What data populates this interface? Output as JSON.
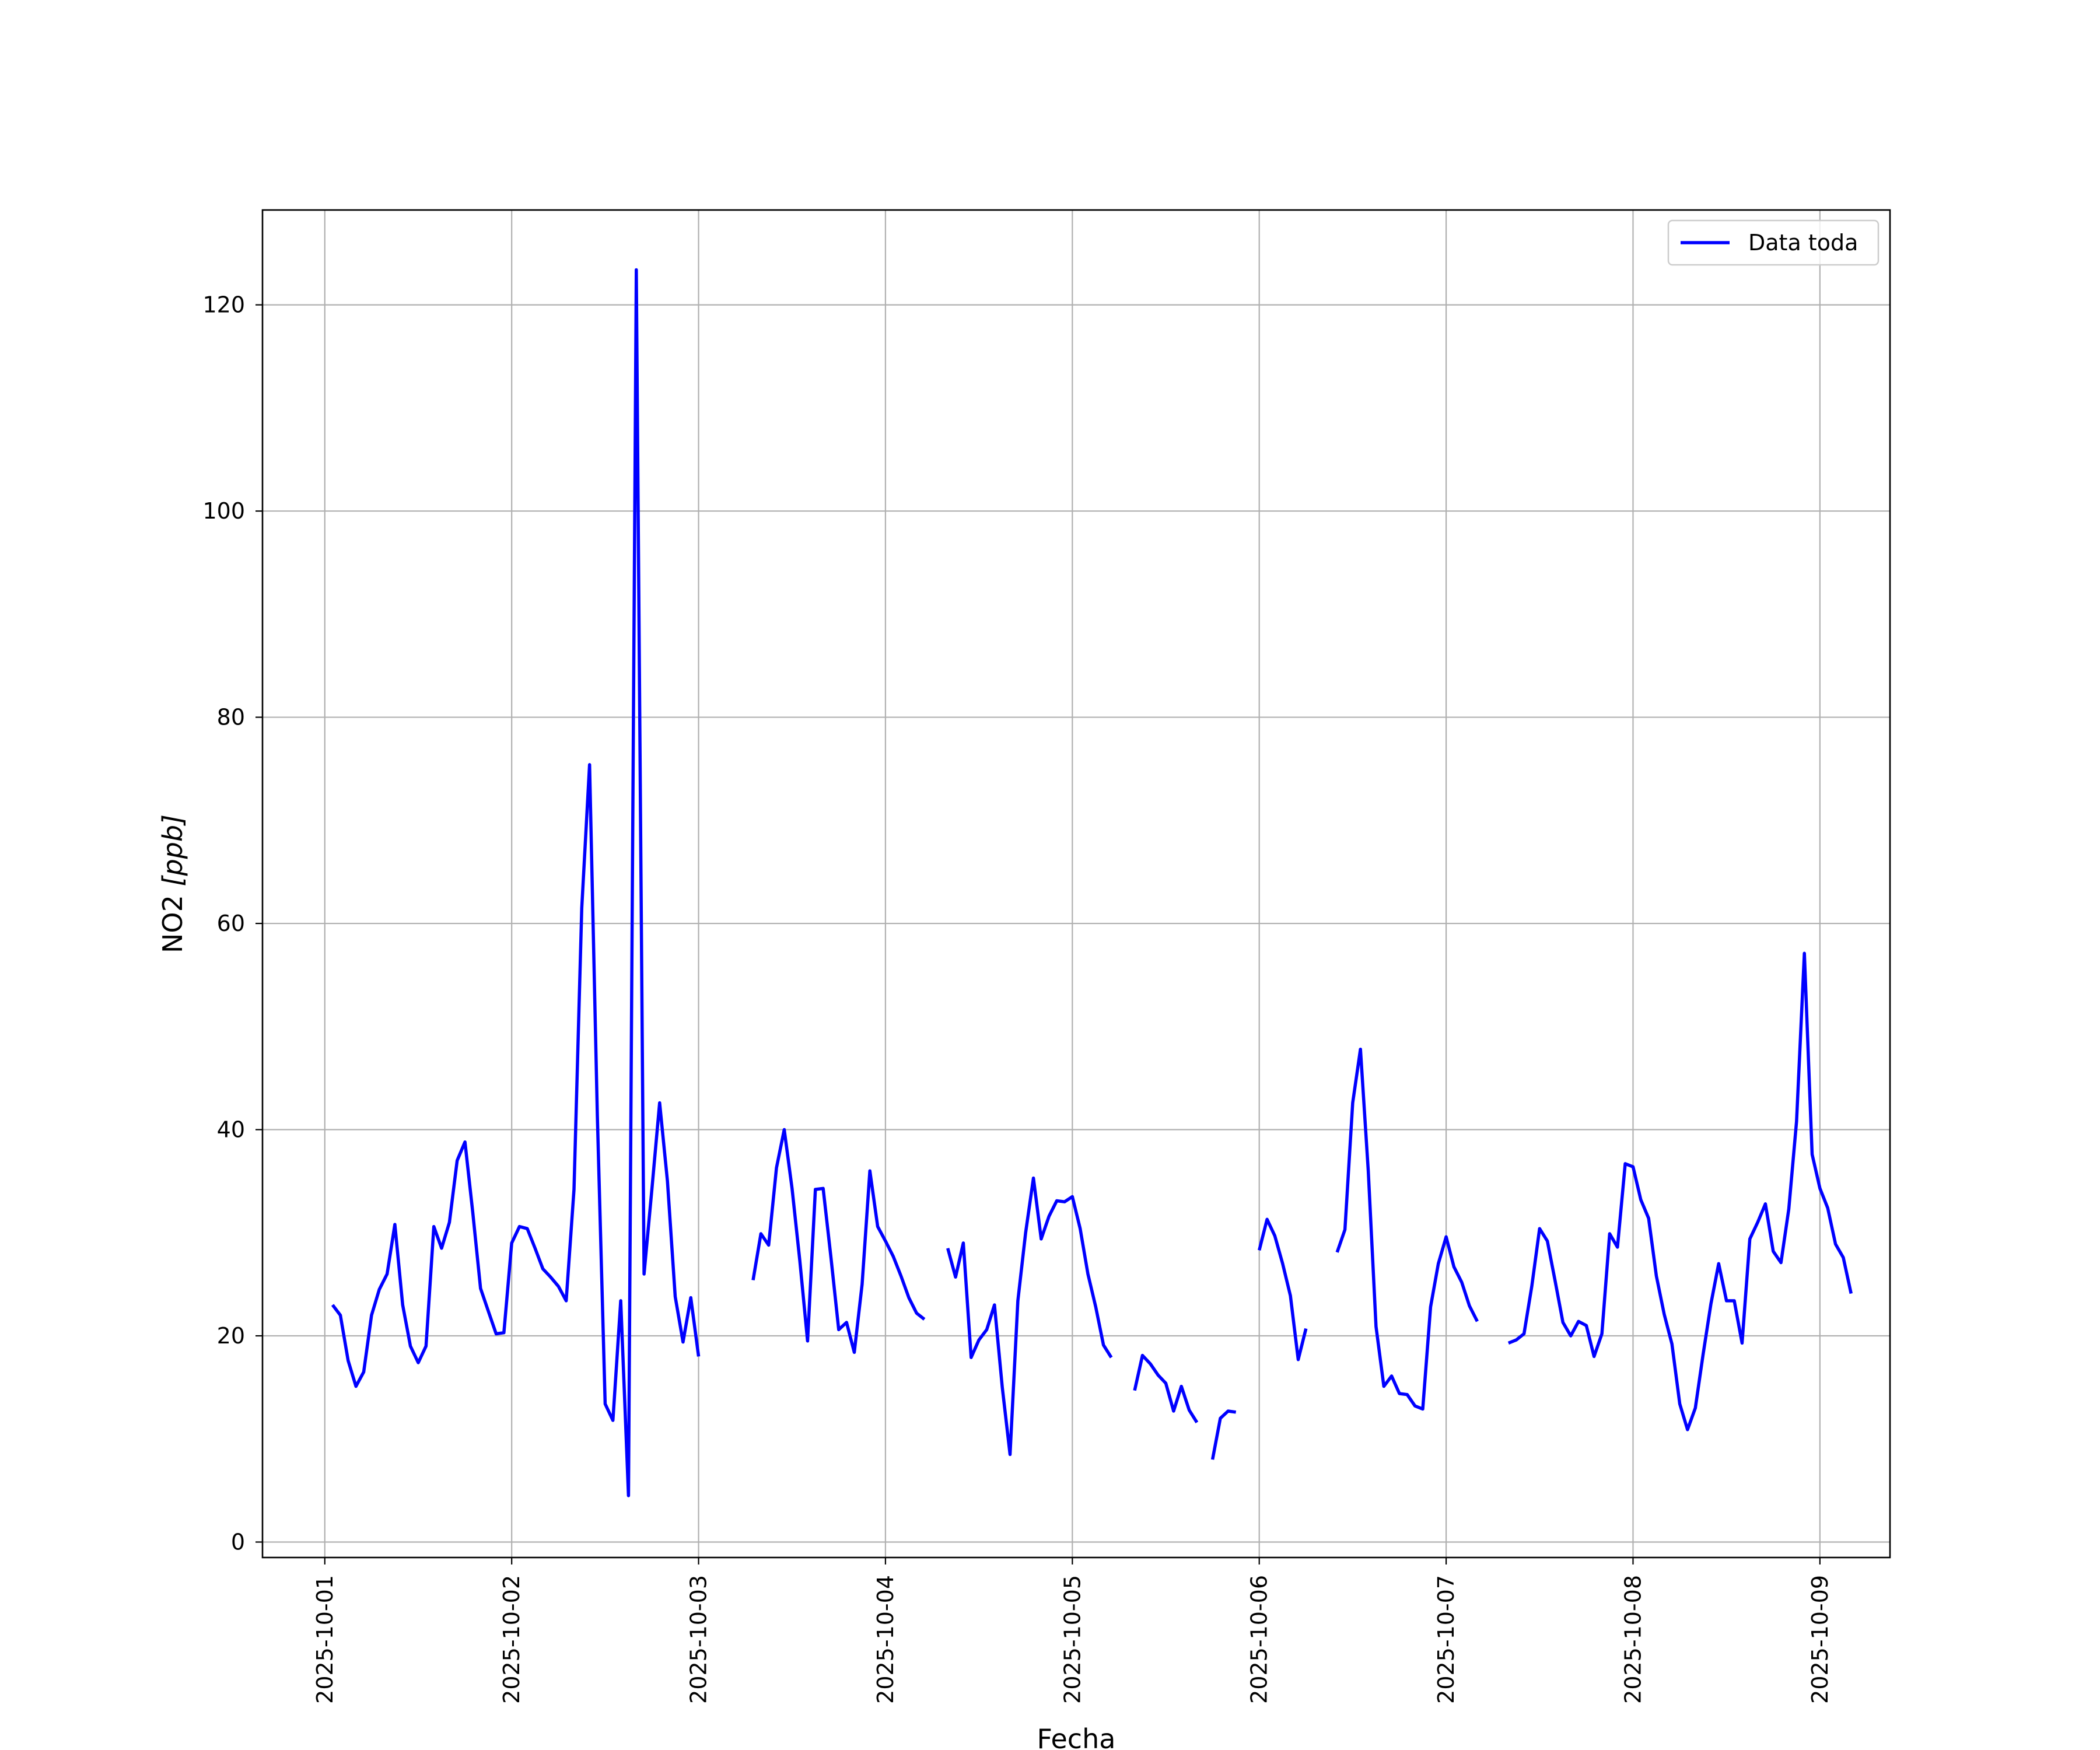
{
  "chart_data": {
    "type": "line",
    "title": "",
    "xlabel": "Fecha",
    "ylabel_main": "NO2 ",
    "ylabel_unit": "[ppb]",
    "x_start": "2025-10-01",
    "x_end": "2025-10-09",
    "xlim": [
      "2025-09-30 16:00",
      "2025-10-09 09:00"
    ],
    "ylim": [
      -1.5,
      129.2
    ],
    "x_ticks": [
      "2025-10-01",
      "2025-10-02",
      "2025-10-03",
      "2025-10-04",
      "2025-10-05",
      "2025-10-06",
      "2025-10-07",
      "2025-10-08",
      "2025-10-09"
    ],
    "y_ticks": [
      0,
      20,
      40,
      60,
      80,
      100,
      120
    ],
    "y_tick_labels": [
      "0",
      "20",
      "40",
      "60",
      "80",
      "100",
      "120"
    ],
    "grid": true,
    "legend_position": "top-right",
    "series": [
      {
        "name": "Data toda",
        "color": "#0000ff",
        "step_hours": 1,
        "values": [
          23.0,
          22.0,
          17.6,
          15.1,
          16.5,
          22.0,
          24.5,
          26.0,
          30.8,
          23.0,
          19.0,
          17.4,
          19.0,
          30.6,
          28.5,
          31.0,
          37.0,
          38.8,
          32.0,
          24.6,
          22.4,
          20.2,
          20.3,
          29.0,
          30.6,
          30.4,
          28.5,
          26.5,
          25.7,
          24.8,
          23.4,
          34.2,
          61.5,
          75.4,
          41.4,
          13.4,
          11.8,
          23.4,
          4.5,
          123.4,
          26.0,
          34.2,
          42.6,
          35.0,
          23.8,
          19.4,
          23.7,
          18.0,
          null,
          null,
          null,
          null,
          null,
          null,
          25.4,
          29.9,
          28.8,
          36.3,
          40.0,
          34.3,
          27.3,
          19.5,
          34.2,
          34.3,
          27.6,
          20.6,
          21.3,
          18.4,
          25.0,
          36.0,
          30.6,
          29.2,
          27.7,
          25.8,
          23.7,
          22.2,
          21.6,
          null,
          null,
          28.5,
          25.7,
          29.0,
          17.9,
          19.6,
          20.6,
          23.0,
          15.0,
          8.5,
          23.4,
          30.0,
          35.3,
          29.4,
          31.6,
          33.1,
          33.0,
          33.5,
          30.4,
          26.0,
          22.8,
          19.1,
          17.9,
          null,
          null,
          14.7,
          18.1,
          17.3,
          16.2,
          15.4,
          12.7,
          15.1,
          12.8,
          11.6,
          null,
          8.0,
          12.0,
          12.7,
          12.6,
          null,
          null,
          28.3,
          31.3,
          29.7,
          27.0,
          23.9,
          17.7,
          20.7,
          null,
          null,
          null,
          28.1,
          30.3,
          42.6,
          47.8,
          36.0,
          20.9,
          15.1,
          16.1,
          14.4,
          14.3,
          13.2,
          12.9,
          22.8,
          27.0,
          29.6,
          26.7,
          25.2,
          22.9,
          21.4,
          null,
          null,
          null,
          19.3,
          19.6,
          20.2,
          24.8,
          30.4,
          29.2,
          25.3,
          21.3,
          20.0,
          21.4,
          21.0,
          18.0,
          20.2,
          29.9,
          28.6,
          36.7,
          36.4,
          33.2,
          31.4,
          25.8,
          22.1,
          19.2,
          13.4,
          10.9,
          13.0,
          18.2,
          23.1,
          27.0,
          23.4,
          23.4,
          19.3,
          29.4,
          31.0,
          32.8,
          28.2,
          27.1,
          32.3,
          40.8,
          57.1,
          37.6,
          34.3,
          32.4,
          28.9,
          27.6,
          24.1
        ]
      }
    ]
  }
}
